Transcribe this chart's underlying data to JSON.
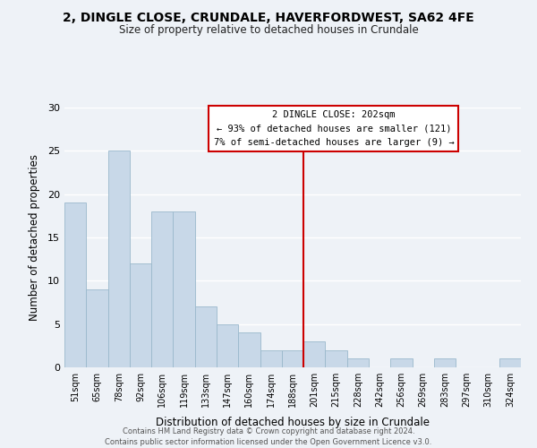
{
  "title": "2, DINGLE CLOSE, CRUNDALE, HAVERFORDWEST, SA62 4FE",
  "subtitle": "Size of property relative to detached houses in Crundale",
  "xlabel": "Distribution of detached houses by size in Crundale",
  "ylabel": "Number of detached properties",
  "bar_labels": [
    "51sqm",
    "65sqm",
    "78sqm",
    "92sqm",
    "106sqm",
    "119sqm",
    "133sqm",
    "147sqm",
    "160sqm",
    "174sqm",
    "188sqm",
    "201sqm",
    "215sqm",
    "228sqm",
    "242sqm",
    "256sqm",
    "269sqm",
    "283sqm",
    "297sqm",
    "310sqm",
    "324sqm"
  ],
  "bar_values": [
    19,
    9,
    25,
    12,
    18,
    18,
    7,
    5,
    4,
    2,
    2,
    3,
    2,
    1,
    0,
    1,
    0,
    1,
    0,
    0,
    1
  ],
  "bar_color": "#c8d8e8",
  "bar_edge_color": "#9ab8cc",
  "vline_color": "#cc0000",
  "ylim": [
    0,
    30
  ],
  "yticks": [
    0,
    5,
    10,
    15,
    20,
    25,
    30
  ],
  "annotation_title": "2 DINGLE CLOSE: 202sqm",
  "annotation_line1": "← 93% of detached houses are smaller (121)",
  "annotation_line2": "7% of semi-detached houses are larger (9) →",
  "annotation_box_color": "#ffffff",
  "annotation_box_edge": "#cc0000",
  "footer1": "Contains HM Land Registry data © Crown copyright and database right 2024.",
  "footer2": "Contains public sector information licensed under the Open Government Licence v3.0.",
  "background_color": "#eef2f7",
  "grid_color": "#ffffff"
}
